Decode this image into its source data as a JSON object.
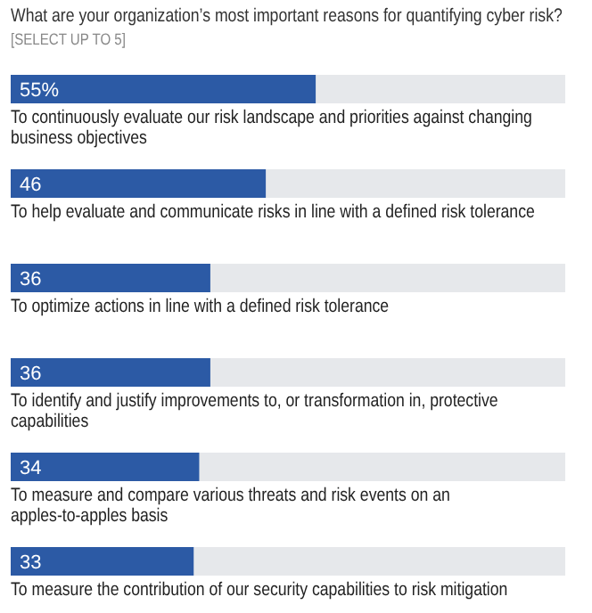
{
  "chart_data": {
    "type": "bar",
    "orientation": "horizontal",
    "title": "What are your organization’s most important reasons for quantifying cyber risk?",
    "subtitle": "[SELECT UP TO 5]",
    "categories": [
      "To continuously evaluate our risk landscape and priorities against changing business objectives",
      "To help evaluate and communicate risks in line with a defined risk tolerance",
      "To optimize actions in line with a defined risk tolerance",
      "To identify and justify improvements to, or transformation in, protective capabilities",
      "To measure and compare various threats and risk events on an apples-to-apples basis",
      "To measure the contribution of our security capabilities to risk mitigation"
    ],
    "values": [
      55,
      46,
      36,
      36,
      34,
      33
    ],
    "value_labels": [
      "55%",
      "46",
      "36",
      "36",
      "34",
      "33"
    ],
    "color": "#2c5aa5",
    "xlim": [
      0,
      100
    ],
    "tick_labels": false
  }
}
